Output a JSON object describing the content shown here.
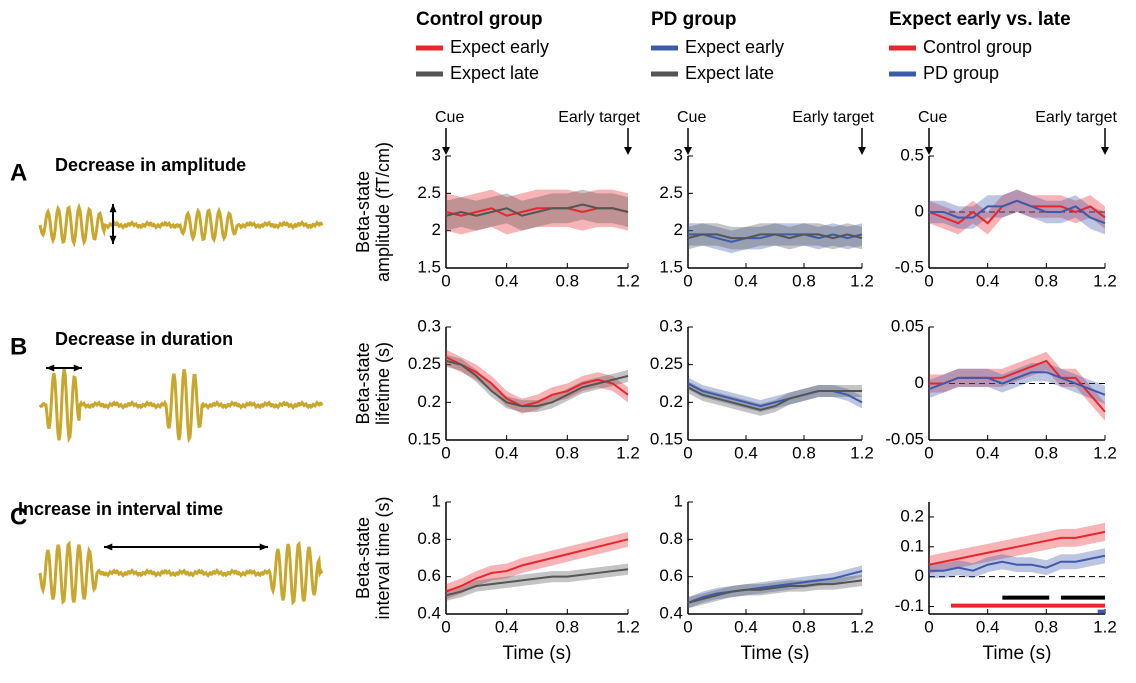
{
  "panels": [
    {
      "label": "A",
      "title": "Decrease in amplitude"
    },
    {
      "label": "B",
      "title": "Decrease in duration"
    },
    {
      "label": "C",
      "title": "Increase in interval time"
    }
  ],
  "legends": [
    {
      "title": "Control group"
    },
    {
      "title": "PD group"
    },
    {
      "title": "Expect early vs. late"
    }
  ],
  "chart_data": [
    {
      "type": "line",
      "ylabel": [
        "Beta-state",
        "amplitude (fT/cm)"
      ],
      "annotations": [
        {
          "text": "Cue",
          "x": 0
        },
        {
          "text": "Early target",
          "x": 1.2
        }
      ],
      "x": [
        0,
        0.1,
        0.2,
        0.3,
        0.4,
        0.5,
        0.6,
        0.7,
        0.8,
        0.9,
        1,
        1.1,
        1.2
      ],
      "xlim": [
        0,
        1.2
      ],
      "xticks": [
        0,
        0.4,
        0.8,
        1.2
      ],
      "ylim": [
        1.5,
        3
      ],
      "yticks": [
        1.5,
        2,
        2.5,
        3
      ],
      "series": [
        {
          "name": "Expect early",
          "color": "#e8262b",
          "values": [
            2.25,
            2.2,
            2.25,
            2.3,
            2.2,
            2.25,
            2.3,
            2.3,
            2.3,
            2.25,
            2.3,
            2.3,
            2.25
          ],
          "error": [
            0.25,
            0.25,
            0.25,
            0.25,
            0.25,
            0.25,
            0.25,
            0.25,
            0.25,
            0.25,
            0.25,
            0.25,
            0.25
          ]
        },
        {
          "name": "Expect late",
          "color": "#555555",
          "values": [
            2.2,
            2.25,
            2.2,
            2.25,
            2.3,
            2.2,
            2.25,
            2.3,
            2.3,
            2.35,
            2.3,
            2.3,
            2.25
          ],
          "error": [
            0.2,
            0.2,
            0.2,
            0.2,
            0.2,
            0.2,
            0.2,
            0.2,
            0.2,
            0.2,
            0.2,
            0.2,
            0.2
          ]
        }
      ]
    },
    {
      "type": "line",
      "annotations": [
        {
          "text": "Cue",
          "x": 0
        },
        {
          "text": "Early target",
          "x": 1.2
        }
      ],
      "x": [
        0,
        0.1,
        0.2,
        0.3,
        0.4,
        0.5,
        0.6,
        0.7,
        0.8,
        0.9,
        1,
        1.1,
        1.2
      ],
      "xlim": [
        0,
        1.2
      ],
      "xticks": [
        0,
        0.4,
        0.8,
        1.2
      ],
      "ylim": [
        1.5,
        3
      ],
      "yticks": [
        1.5,
        2,
        2.5,
        3
      ],
      "series": [
        {
          "name": "Expect early",
          "color": "#3e5bab",
          "values": [
            1.95,
            1.95,
            1.9,
            1.85,
            1.9,
            1.9,
            1.95,
            1.95,
            1.95,
            1.9,
            1.95,
            1.9,
            1.95
          ],
          "error": [
            0.15,
            0.15,
            0.15,
            0.15,
            0.15,
            0.15,
            0.15,
            0.15,
            0.15,
            0.15,
            0.15,
            0.15,
            0.15
          ]
        },
        {
          "name": "Expect late",
          "color": "#555555",
          "values": [
            1.9,
            1.95,
            1.95,
            1.9,
            1.9,
            1.95,
            1.95,
            1.9,
            1.95,
            1.95,
            1.9,
            1.95,
            1.9
          ],
          "error": [
            0.15,
            0.15,
            0.15,
            0.15,
            0.15,
            0.15,
            0.15,
            0.15,
            0.15,
            0.15,
            0.15,
            0.15,
            0.15
          ]
        }
      ]
    },
    {
      "type": "line",
      "annotations": [
        {
          "text": "Cue",
          "x": 0
        },
        {
          "text": "Early target",
          "x": 1.2
        }
      ],
      "hline": 0,
      "x": [
        0,
        0.1,
        0.2,
        0.3,
        0.4,
        0.5,
        0.6,
        0.7,
        0.8,
        0.9,
        1,
        1.1,
        1.2
      ],
      "xlim": [
        0,
        1.2
      ],
      "xticks": [
        0,
        0.4,
        0.8,
        1.2
      ],
      "ylim": [
        -0.5,
        0.5
      ],
      "yticks": [
        -0.5,
        0,
        0.5
      ],
      "series": [
        {
          "name": "Control group",
          "color": "#e8262b",
          "values": [
            0,
            -0.05,
            -0.1,
            0,
            -0.1,
            0.05,
            0.1,
            0.05,
            0.05,
            0.05,
            0,
            0.05,
            -0.05
          ],
          "error": [
            0.1,
            0.1,
            0.1,
            0.1,
            0.1,
            0.1,
            0.1,
            0.1,
            0.1,
            0.1,
            0.1,
            0.1,
            0.1
          ]
        },
        {
          "name": "PD group",
          "color": "#3e5bab",
          "values": [
            0,
            0,
            -0.05,
            -0.05,
            0.05,
            0.05,
            0.1,
            0.05,
            0,
            0,
            0.05,
            -0.05,
            -0.1
          ],
          "error": [
            0.1,
            0.1,
            0.1,
            0.1,
            0.1,
            0.1,
            0.1,
            0.1,
            0.1,
            0.1,
            0.1,
            0.1,
            0.1
          ]
        }
      ]
    },
    {
      "type": "line",
      "ylabel": [
        "Beta-state",
        "lifetime (s)"
      ],
      "x": [
        0,
        0.1,
        0.2,
        0.3,
        0.4,
        0.5,
        0.6,
        0.7,
        0.8,
        0.9,
        1,
        1.1,
        1.2
      ],
      "xlim": [
        0,
        1.2
      ],
      "xticks": [
        0,
        0.4,
        0.8,
        1.2
      ],
      "ylim": [
        0.15,
        0.3
      ],
      "yticks": [
        0.15,
        0.2,
        0.25,
        0.3
      ],
      "series": [
        {
          "name": "Expect early",
          "color": "#e8262b",
          "values": [
            0.26,
            0.25,
            0.24,
            0.225,
            0.205,
            0.195,
            0.2,
            0.21,
            0.215,
            0.225,
            0.23,
            0.225,
            0.21
          ],
          "error": [
            0.01,
            0.01,
            0.01,
            0.01,
            0.01,
            0.01,
            0.01,
            0.01,
            0.01,
            0.01,
            0.01,
            0.01,
            0.01
          ]
        },
        {
          "name": "Expect late",
          "color": "#555555",
          "values": [
            0.255,
            0.25,
            0.235,
            0.215,
            0.2,
            0.195,
            0.195,
            0.2,
            0.21,
            0.22,
            0.225,
            0.23,
            0.235
          ],
          "error": [
            0.008,
            0.008,
            0.008,
            0.008,
            0.008,
            0.008,
            0.008,
            0.008,
            0.008,
            0.008,
            0.008,
            0.008,
            0.008
          ]
        }
      ]
    },
    {
      "type": "line",
      "x": [
        0,
        0.1,
        0.2,
        0.3,
        0.4,
        0.5,
        0.6,
        0.7,
        0.8,
        0.9,
        1,
        1.1,
        1.2
      ],
      "xlim": [
        0,
        1.2
      ],
      "xticks": [
        0,
        0.4,
        0.8,
        1.2
      ],
      "ylim": [
        0.15,
        0.3
      ],
      "yticks": [
        0.15,
        0.2,
        0.25,
        0.3
      ],
      "series": [
        {
          "name": "Expect early",
          "color": "#3e5bab",
          "values": [
            0.225,
            0.215,
            0.21,
            0.205,
            0.2,
            0.195,
            0.2,
            0.205,
            0.21,
            0.215,
            0.215,
            0.21,
            0.2
          ],
          "error": [
            0.008,
            0.008,
            0.008,
            0.008,
            0.008,
            0.008,
            0.008,
            0.008,
            0.008,
            0.008,
            0.008,
            0.008,
            0.008
          ]
        },
        {
          "name": "Expect late",
          "color": "#555555",
          "values": [
            0.22,
            0.21,
            0.205,
            0.2,
            0.195,
            0.19,
            0.195,
            0.205,
            0.21,
            0.215,
            0.215,
            0.215,
            0.215
          ],
          "error": [
            0.008,
            0.008,
            0.008,
            0.008,
            0.008,
            0.008,
            0.008,
            0.008,
            0.008,
            0.008,
            0.008,
            0.008,
            0.008
          ]
        }
      ]
    },
    {
      "type": "line",
      "hline": 0,
      "x": [
        0,
        0.1,
        0.2,
        0.3,
        0.4,
        0.5,
        0.6,
        0.7,
        0.8,
        0.9,
        1,
        1.1,
        1.2
      ],
      "xlim": [
        0,
        1.2
      ],
      "xticks": [
        0,
        0.4,
        0.8,
        1.2
      ],
      "ylim": [
        -0.05,
        0.05
      ],
      "yticks": [
        -0.05,
        0,
        0.05
      ],
      "series": [
        {
          "name": "Control group",
          "color": "#e8262b",
          "values": [
            0,
            0,
            0.005,
            0.005,
            0.005,
            0.005,
            0.01,
            0.015,
            0.02,
            0.005,
            0.005,
            -0.01,
            -0.025
          ],
          "error": [
            0.008,
            0.008,
            0.008,
            0.008,
            0.008,
            0.008,
            0.008,
            0.008,
            0.008,
            0.008,
            0.008,
            0.008,
            0.008
          ]
        },
        {
          "name": "PD group",
          "color": "#3e5bab",
          "values": [
            -0.005,
            0,
            0.005,
            0.005,
            0.005,
            0,
            0.005,
            0.01,
            0.01,
            0.005,
            0,
            -0.005,
            -0.01
          ],
          "error": [
            0.008,
            0.008,
            0.008,
            0.008,
            0.008,
            0.008,
            0.008,
            0.008,
            0.008,
            0.008,
            0.008,
            0.008,
            0.008
          ]
        }
      ]
    },
    {
      "type": "line",
      "ylabel": [
        "Beta-state",
        "interval time (s)"
      ],
      "xlabel": "Time (s)",
      "x": [
        0,
        0.1,
        0.2,
        0.3,
        0.4,
        0.5,
        0.6,
        0.7,
        0.8,
        0.9,
        1,
        1.1,
        1.2
      ],
      "xlim": [
        0,
        1.2
      ],
      "xticks": [
        0,
        0.4,
        0.8,
        1.2
      ],
      "ylim": [
        0.4,
        1
      ],
      "yticks": [
        0.4,
        0.6,
        0.8,
        1
      ],
      "series": [
        {
          "name": "Expect early",
          "color": "#e8262b",
          "values": [
            0.52,
            0.55,
            0.59,
            0.62,
            0.63,
            0.66,
            0.68,
            0.7,
            0.72,
            0.74,
            0.76,
            0.78,
            0.8
          ],
          "error": [
            0.04,
            0.04,
            0.04,
            0.04,
            0.04,
            0.04,
            0.04,
            0.04,
            0.04,
            0.04,
            0.04,
            0.04,
            0.04
          ]
        },
        {
          "name": "Expect late",
          "color": "#555555",
          "values": [
            0.5,
            0.52,
            0.55,
            0.56,
            0.57,
            0.58,
            0.59,
            0.6,
            0.6,
            0.61,
            0.62,
            0.63,
            0.64
          ],
          "error": [
            0.03,
            0.03,
            0.03,
            0.03,
            0.03,
            0.03,
            0.03,
            0.03,
            0.03,
            0.03,
            0.03,
            0.03,
            0.03
          ]
        }
      ]
    },
    {
      "type": "line",
      "xlabel": "Time (s)",
      "x": [
        0,
        0.1,
        0.2,
        0.3,
        0.4,
        0.5,
        0.6,
        0.7,
        0.8,
        0.9,
        1,
        1.1,
        1.2
      ],
      "xlim": [
        0,
        1.2
      ],
      "xticks": [
        0,
        0.4,
        0.8,
        1.2
      ],
      "ylim": [
        0.4,
        1
      ],
      "yticks": [
        0.4,
        0.6,
        0.8,
        1
      ],
      "series": [
        {
          "name": "Expect early",
          "color": "#3e5bab",
          "values": [
            0.46,
            0.49,
            0.51,
            0.52,
            0.53,
            0.54,
            0.55,
            0.56,
            0.57,
            0.58,
            0.59,
            0.61,
            0.63
          ],
          "error": [
            0.03,
            0.03,
            0.03,
            0.03,
            0.03,
            0.03,
            0.03,
            0.03,
            0.03,
            0.03,
            0.03,
            0.03,
            0.03
          ]
        },
        {
          "name": "Expect late",
          "color": "#555555",
          "values": [
            0.46,
            0.48,
            0.5,
            0.52,
            0.53,
            0.53,
            0.54,
            0.55,
            0.55,
            0.56,
            0.56,
            0.57,
            0.58
          ],
          "error": [
            0.03,
            0.03,
            0.03,
            0.03,
            0.03,
            0.03,
            0.03,
            0.03,
            0.03,
            0.03,
            0.03,
            0.03,
            0.03
          ]
        }
      ]
    },
    {
      "type": "line",
      "xlabel": "Time (s)",
      "hline": 0,
      "x": [
        0,
        0.1,
        0.2,
        0.3,
        0.4,
        0.5,
        0.6,
        0.7,
        0.8,
        0.9,
        1,
        1.1,
        1.2
      ],
      "xlim": [
        0,
        1.2
      ],
      "xticks": [
        0,
        0.4,
        0.8,
        1.2
      ],
      "ylim": [
        -0.125,
        0.25
      ],
      "yticks": [
        -0.1,
        0,
        0.1,
        0.2
      ],
      "series": [
        {
          "name": "Control group",
          "color": "#e8262b",
          "values": [
            0.04,
            0.05,
            0.06,
            0.07,
            0.08,
            0.09,
            0.1,
            0.11,
            0.12,
            0.13,
            0.13,
            0.14,
            0.15
          ],
          "error": [
            0.03,
            0.03,
            0.03,
            0.03,
            0.03,
            0.03,
            0.03,
            0.03,
            0.03,
            0.03,
            0.03,
            0.03,
            0.03
          ]
        },
        {
          "name": "PD group",
          "color": "#3e5bab",
          "values": [
            0.02,
            0.02,
            0.03,
            0.02,
            0.04,
            0.05,
            0.04,
            0.04,
            0.03,
            0.05,
            0.05,
            0.06,
            0.07
          ],
          "error": [
            0.025,
            0.025,
            0.025,
            0.025,
            0.025,
            0.025,
            0.025,
            0.025,
            0.025,
            0.025,
            0.025,
            0.025,
            0.025
          ]
        }
      ],
      "significance": [
        {
          "color": "#e8262b",
          "x": [
            0.15,
            1.2
          ],
          "y": -0.097
        },
        {
          "color": "#000000",
          "x": [
            0.5,
            0.82
          ],
          "y": -0.07
        },
        {
          "color": "#000000",
          "x": [
            0.9,
            1.2
          ],
          "y": -0.07
        },
        {
          "color": "#3e5bab",
          "x": [
            1.15,
            1.2
          ],
          "y": -0.117
        }
      ]
    }
  ]
}
